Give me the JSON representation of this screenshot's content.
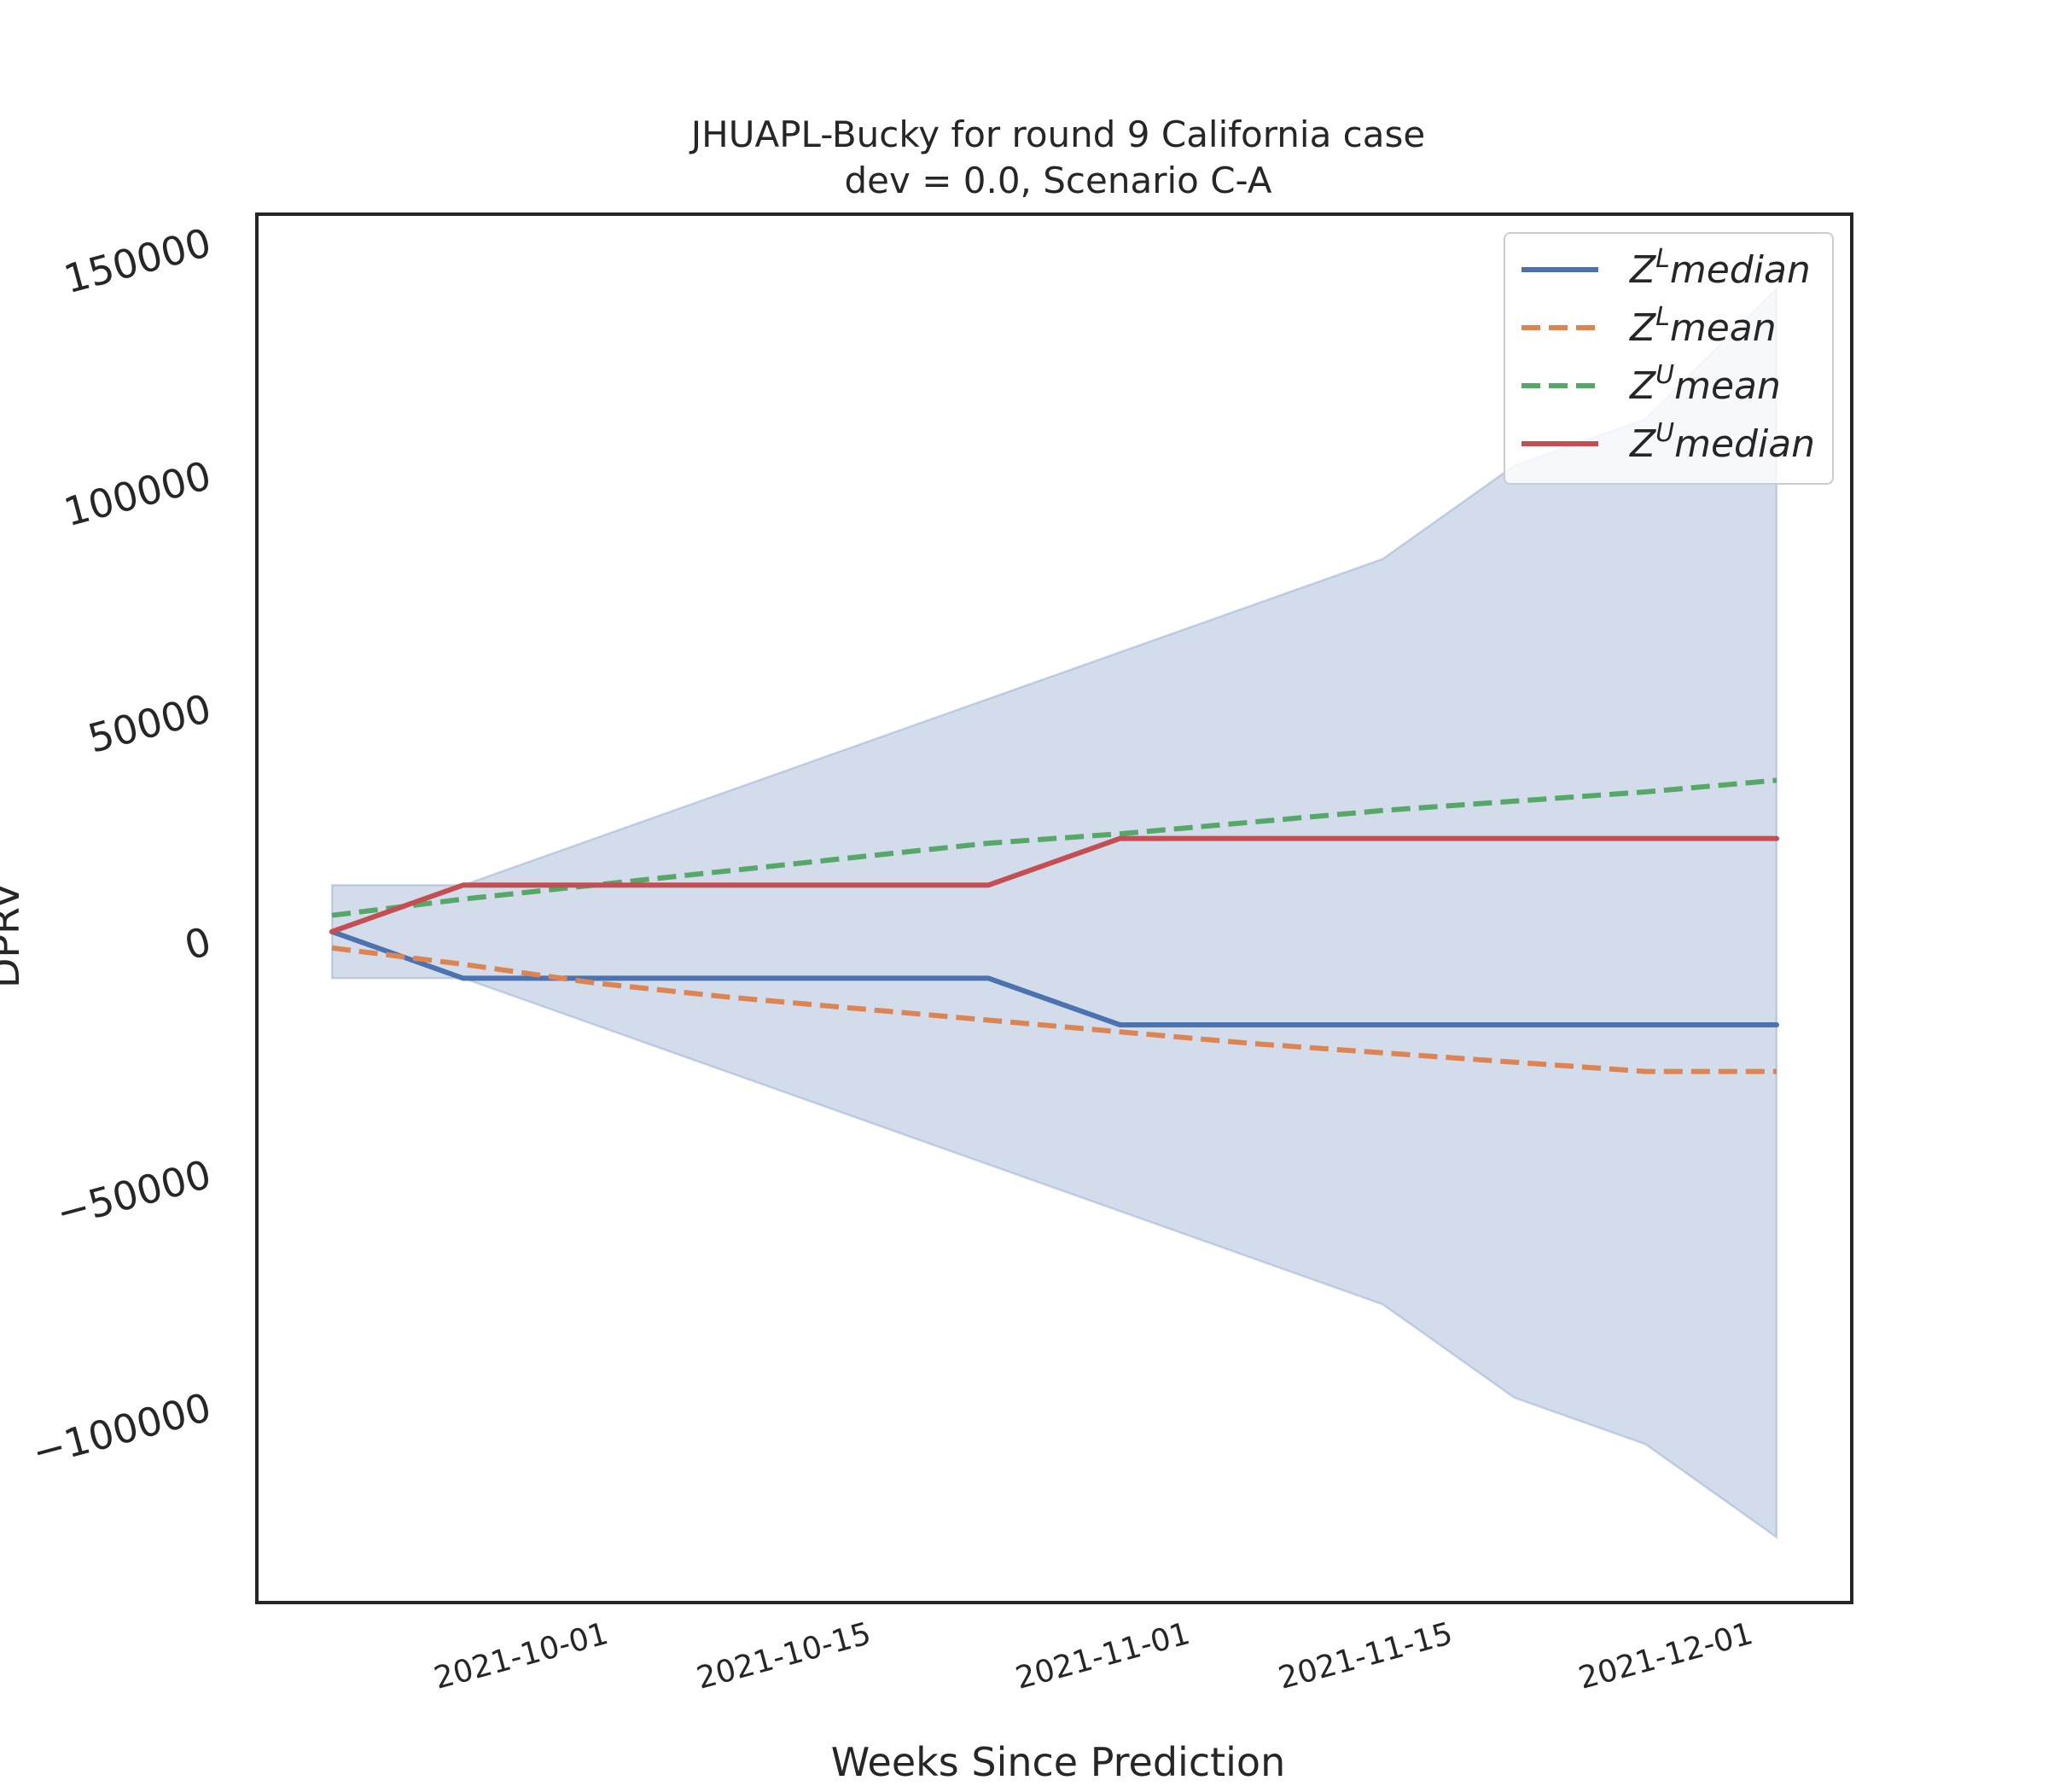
{
  "chart_data": {
    "type": "line",
    "title": "JHUAPL-Bucky for round 9 California case",
    "subtitle": "dev = 0.0, Scenario C-A",
    "xlabel": "Weeks Since Prediction",
    "ylabel": "DPRV",
    "x": [
      "2021-09-18",
      "2021-09-25",
      "2021-10-02",
      "2021-10-09",
      "2021-10-16",
      "2021-10-23",
      "2021-10-30",
      "2021-11-06",
      "2021-11-13",
      "2021-11-20",
      "2021-11-27",
      "2021-12-04"
    ],
    "xlim": [
      "2021-09-14",
      "2021-12-08"
    ],
    "xticks": [
      "2021-10-01",
      "2021-10-15",
      "2021-11-01",
      "2021-11-15",
      "2021-12-01"
    ],
    "ylim": [
      -143000,
      155000
    ],
    "yticks": [
      -100000,
      -50000,
      0,
      50000,
      100000,
      150000
    ],
    "ytick_labels": [
      "−100000",
      "−50000",
      "0",
      "50000",
      "100000",
      "150000"
    ],
    "series": [
      {
        "name": "median",
        "superscript": "L",
        "style": "solid",
        "color": "#4c72b0",
        "values": [
          1000,
          -9000,
          -9000,
          -9000,
          -9000,
          -9000,
          -19000,
          -19000,
          -19000,
          -19000,
          -19000,
          -19000
        ]
      },
      {
        "name": "mean",
        "superscript": "L",
        "style": "dashed",
        "color": "#dd8452",
        "values": [
          -2500,
          -6000,
          -10000,
          -13000,
          -15500,
          -18000,
          -20500,
          -23000,
          -25000,
          -27000,
          -29000,
          -29000
        ]
      },
      {
        "name": "mean",
        "superscript": "U",
        "style": "dashed",
        "color": "#55a868",
        "values": [
          4500,
          8000,
          11000,
          14000,
          17000,
          20000,
          22000,
          24500,
          27000,
          29000,
          31000,
          33500
        ]
      },
      {
        "name": "median",
        "superscript": "U",
        "style": "solid",
        "color": "#c44e52",
        "values": [
          1000,
          11000,
          11000,
          11000,
          11000,
          11000,
          21000,
          21000,
          21000,
          21000,
          21000,
          21000
        ]
      }
    ],
    "band": {
      "color": "#4c72b0",
      "upper": [
        11000,
        11000,
        21000,
        31000,
        41000,
        51000,
        61000,
        71000,
        81000,
        101000,
        111000,
        139000
      ],
      "lower": [
        -9000,
        -9000,
        -19000,
        -29000,
        -39000,
        -49000,
        -59000,
        -69000,
        -79000,
        -99000,
        -109000,
        -129000
      ]
    },
    "legend": "top-right",
    "grid": false
  }
}
